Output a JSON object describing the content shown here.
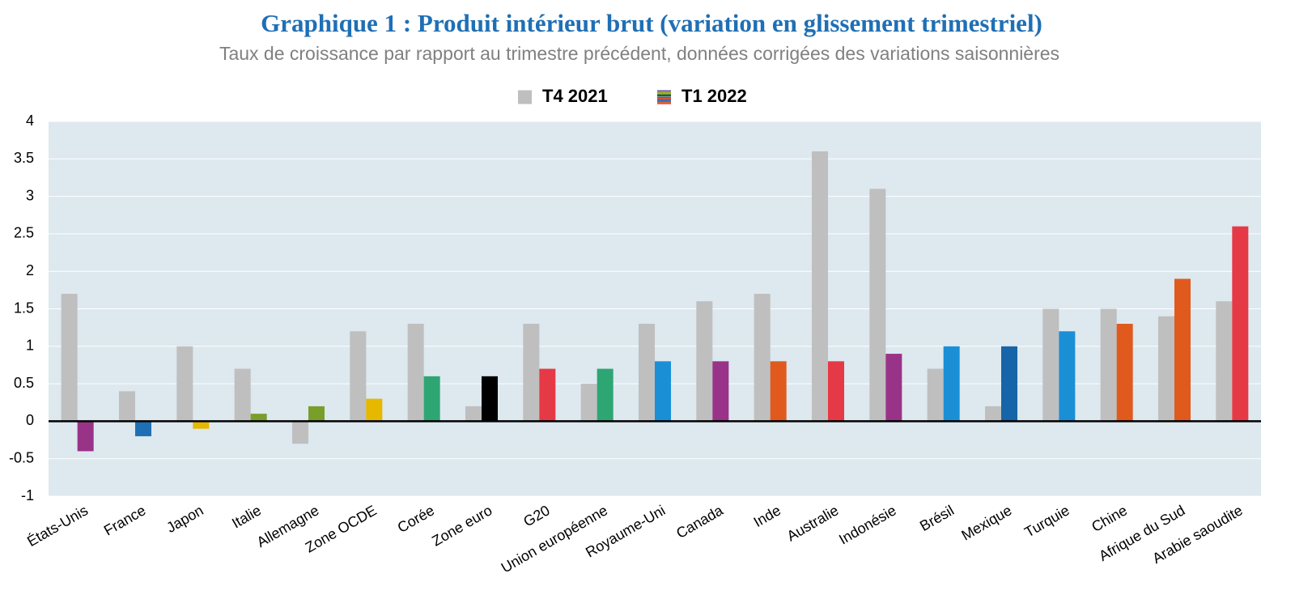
{
  "chart_data": {
    "type": "bar",
    "title": "Graphique 1 : Produit intérieur brut (variation en glissement trimestriel)",
    "subtitle": "Taux de croissance par rapport au trimestre précédent, données corrigées des variations saisonnières",
    "categories": [
      "États-Unis",
      "France",
      "Japon",
      "Italie",
      "Allemagne",
      "Zone OCDE",
      "Corée",
      "Zone euro",
      "G20",
      "Union européenne",
      "Royaume-Uni",
      "Canada",
      "Inde",
      "Australie",
      "Indonésie",
      "Brésil",
      "Mexique",
      "Turquie",
      "Chine",
      "Afrique du Sud",
      "Arabie saoudite"
    ],
    "series": [
      {
        "name": "T4 2021",
        "color": "#bfbfbf",
        "values": [
          1.7,
          0.4,
          1.0,
          0.7,
          -0.3,
          1.2,
          1.3,
          0.2,
          1.3,
          0.5,
          1.3,
          1.6,
          1.7,
          3.6,
          3.1,
          0.7,
          0.2,
          1.5,
          1.5,
          1.4,
          1.6
        ]
      },
      {
        "name": "T1 2022",
        "color": [
          "#993388",
          "#1f6fb5",
          "#e6b800",
          "#7a9e2a",
          "#7a9e2a",
          "#e6b800",
          "#2ea673",
          "#000000",
          "#e63946",
          "#2ea673",
          "#1a8fd6",
          "#993388",
          "#e05a1e",
          "#e63946",
          "#993388",
          "#1a8fd6",
          "#1565a8",
          "#1a8fd6",
          "#e05a1e",
          "#e05a1e",
          "#e63946"
        ],
        "values": [
          -0.4,
          -0.2,
          -0.1,
          0.1,
          0.2,
          0.3,
          0.6,
          0.6,
          0.7,
          0.7,
          0.8,
          0.8,
          0.8,
          0.8,
          0.9,
          1.0,
          1.0,
          1.2,
          1.3,
          1.9,
          2.6
        ]
      }
    ],
    "ylim": [
      -1,
      4
    ],
    "yticks": [
      -1,
      -0.5,
      0,
      0.5,
      1,
      1.5,
      2,
      2.5,
      3,
      3.5,
      4
    ],
    "grid": true
  }
}
